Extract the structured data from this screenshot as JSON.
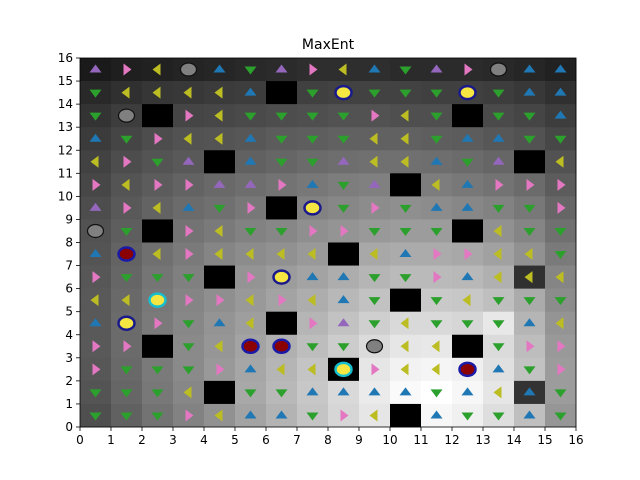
{
  "chart_data": {
    "type": "heatmap",
    "title": "MaxEnt",
    "xlabel": "",
    "ylabel": "",
    "xlim": [
      0,
      16
    ],
    "ylim": [
      0,
      16
    ],
    "x_ticks": [
      "0",
      "1",
      "2",
      "3",
      "4",
      "5",
      "6",
      "7",
      "8",
      "9",
      "10",
      "11",
      "12",
      "13",
      "14",
      "15",
      "16"
    ],
    "y_ticks": [
      "0",
      "1",
      "2",
      "3",
      "4",
      "5",
      "6",
      "7",
      "8",
      "9",
      "10",
      "11",
      "12",
      "13",
      "14",
      "15",
      "16"
    ],
    "grid": false,
    "colormap": "gray",
    "arrow_colors": {
      "U": "#1f77b4",
      "D": "#2ca02c",
      "L": "#bcbd22",
      "R": "#e377c2",
      "u": "#9467bd",
      "d": "#8c564b"
    },
    "cell_values_top_to_bottom": [
      [
        0.1,
        0.12,
        0.13,
        0.14,
        0.15,
        0.16,
        0.17,
        0.18,
        0.18,
        0.18,
        0.17,
        0.17,
        0.17,
        0.16,
        0.15,
        0.13
      ],
      [
        0.16,
        0.19,
        0.21,
        0.22,
        0.23,
        0.24,
        0.0,
        0.25,
        0.26,
        0.26,
        0.26,
        0.25,
        0.25,
        0.24,
        0.22,
        0.19
      ],
      [
        0.2,
        0.24,
        0.0,
        0.27,
        0.28,
        0.29,
        0.3,
        0.31,
        0.32,
        0.32,
        0.31,
        0.31,
        0.0,
        0.29,
        0.27,
        0.24
      ],
      [
        0.23,
        0.27,
        0.3,
        0.32,
        0.33,
        0.34,
        0.36,
        0.37,
        0.38,
        0.38,
        0.38,
        0.37,
        0.36,
        0.34,
        0.32,
        0.28
      ],
      [
        0.26,
        0.3,
        0.33,
        0.35,
        0.0,
        0.38,
        0.4,
        0.42,
        0.43,
        0.44,
        0.44,
        0.43,
        0.42,
        0.4,
        0.0,
        0.32
      ],
      [
        0.28,
        0.33,
        0.36,
        0.39,
        0.41,
        0.43,
        0.45,
        0.47,
        0.49,
        0.5,
        0.0,
        0.49,
        0.47,
        0.45,
        0.42,
        0.36
      ],
      [
        0.3,
        0.35,
        0.39,
        0.42,
        0.44,
        0.47,
        0.0,
        0.51,
        0.53,
        0.55,
        0.56,
        0.55,
        0.53,
        0.51,
        0.47,
        0.4
      ],
      [
        0.32,
        0.37,
        0.0,
        0.45,
        0.48,
        0.51,
        0.53,
        0.56,
        0.58,
        0.6,
        0.61,
        0.61,
        0.0,
        0.57,
        0.52,
        0.44
      ],
      [
        0.33,
        0.39,
        0.44,
        0.48,
        0.52,
        0.55,
        0.57,
        0.6,
        0.0,
        0.66,
        0.67,
        0.67,
        0.66,
        0.63,
        0.57,
        0.48
      ],
      [
        0.34,
        0.4,
        0.46,
        0.5,
        0.0,
        0.58,
        0.61,
        0.64,
        0.68,
        0.71,
        0.73,
        0.73,
        0.72,
        0.69,
        0.19,
        0.52
      ],
      [
        0.35,
        0.41,
        0.47,
        0.52,
        0.56,
        0.6,
        0.64,
        0.68,
        0.72,
        0.76,
        0.0,
        0.79,
        0.78,
        0.75,
        0.67,
        0.55
      ],
      [
        0.35,
        0.42,
        0.48,
        0.53,
        0.58,
        0.62,
        0.0,
        0.71,
        0.76,
        0.81,
        0.85,
        0.85,
        0.84,
        0.91,
        0.71,
        0.58
      ],
      [
        0.35,
        0.42,
        0.0,
        0.54,
        0.59,
        0.64,
        0.69,
        0.74,
        0.8,
        0.86,
        0.9,
        0.91,
        0.0,
        0.86,
        0.74,
        0.6
      ],
      [
        0.34,
        0.41,
        0.48,
        0.54,
        0.6,
        0.65,
        0.71,
        0.77,
        0.0,
        0.9,
        0.95,
        0.96,
        0.94,
        0.88,
        0.76,
        0.61
      ],
      [
        0.33,
        0.4,
        0.47,
        0.53,
        0.0,
        0.66,
        0.72,
        0.78,
        0.85,
        0.92,
        0.98,
        1.0,
        0.97,
        0.9,
        0.2,
        0.61
      ],
      [
        0.31,
        0.38,
        0.45,
        0.51,
        0.57,
        0.64,
        0.7,
        0.77,
        0.84,
        0.9,
        0.0,
        0.97,
        0.94,
        0.87,
        0.75,
        0.59
      ]
    ],
    "arrows_top_to_bottom": [
      "uRLRUDuRLUDuRLUU",
      "DLLLLUDDDDDDDDUU",
      "DDDRLDDDDRLDDDDU",
      "UDRLLUDDDLLDUUDD",
      "LRDuRUDDuLLUDuRL",
      "RLRRuuRUDuRLURRR",
      "uRLUDRRUDRDUUDDR",
      "DDLRLDDRRDDDLLDD",
      "UDLRLLLLLLURRLLD",
      "RDDDRRDUUDDRULLL",
      "LLDRRLRLUDDDLDDD",
      "ULRDULURuDLDDDUL",
      "RRDDLUDDDLLLLDRR",
      "RDDDRULLURLLLUDR",
      "DDDLLDDUUUUDULUD",
      "DDDRLUUDRLLUDDUD"
    ],
    "markers": [
      {
        "type": "goal",
        "x": 1.5,
        "y": 7.5
      },
      {
        "type": "goal",
        "x": 6.5,
        "y": 3.5
      },
      {
        "type": "goal",
        "x": 12.5,
        "y": 2.5
      },
      {
        "type": "goal",
        "x": 5.5,
        "y": 3.5
      },
      {
        "type": "start",
        "x": 1.5,
        "y": 4.5
      },
      {
        "type": "start",
        "x": 6.5,
        "y": 6.5
      },
      {
        "type": "start",
        "x": 7.5,
        "y": 9.5
      },
      {
        "type": "start",
        "x": 8.5,
        "y": 14.5
      },
      {
        "type": "start",
        "x": 12.5,
        "y": 14.5
      },
      {
        "type": "agent",
        "x": 2.5,
        "y": 5.5
      },
      {
        "type": "agent",
        "x": 8.5,
        "y": 2.5
      },
      {
        "type": "neutral",
        "x": 0.5,
        "y": 8.5
      },
      {
        "type": "neutral",
        "x": 1.5,
        "y": 13.5
      },
      {
        "type": "neutral",
        "x": 3.5,
        "y": 15.5
      },
      {
        "type": "neutral",
        "x": 9.5,
        "y": 3.5
      },
      {
        "type": "neutral",
        "x": 13.5,
        "y": 15.5
      }
    ]
  }
}
